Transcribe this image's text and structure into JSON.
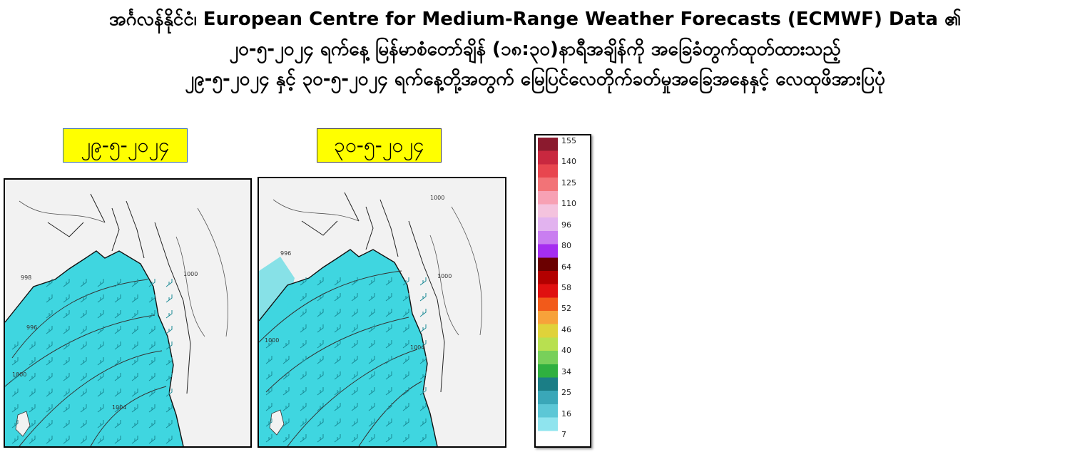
{
  "title": {
    "line1": "အင်္ဂလန်နိုင်ငံ၊ European Centre for Medium-Range Weather Forecasts  (ECMWF) Data ၏",
    "line2": "၂၀-၅-၂၀၂၄ ရက်နေ့ မြန်မာစံတော်ချိန် (၁၈:၃၀)နာရီအချိန်ကို  အခြေခံတွက်ထုတ်ထားသည့်",
    "line3": "၂၉-၅-၂၀၂၄ နှင့် ၃၀-၅-၂၀၂၄ ရက်နေ့တို့အတွက် မြေပြင်လေတိုက်ခတ်မှုအခြေအနေနှင့် လေထုဖိအားပြပုံ"
  },
  "maps": [
    {
      "date_label": "၂၉-၅-၂၀၂၄",
      "contour_labels": [
        "998",
        "1000",
        "996",
        "1000",
        "1004"
      ]
    },
    {
      "date_label": "၃၀-၅-၂၀၂၄",
      "contour_labels": [
        "1000",
        "996",
        "1000",
        "1004",
        "1000"
      ]
    }
  ],
  "colors": {
    "ocean": "#3fd6e0",
    "land": "#f2f2f2",
    "label_bg": "#ffff00",
    "contour": "#333333"
  },
  "legend": {
    "ticks": [
      "155",
      "140",
      "125",
      "110",
      "96",
      "80",
      "64",
      "58",
      "52",
      "46",
      "40",
      "34",
      "25",
      "16",
      "7"
    ],
    "bands": [
      "#8b1a2e",
      "#c9283f",
      "#e8464f",
      "#f27377",
      "#f7a1b4",
      "#f4c3de",
      "#e2b3ef",
      "#c97ef0",
      "#a52ef0",
      "#6b0000",
      "#b30000",
      "#e01010",
      "#f25a1a",
      "#f7a23a",
      "#e0d23a",
      "#b8e050",
      "#78d05a",
      "#2fb040",
      "#1b7e86",
      "#3aa7b8",
      "#5cc7d6",
      "#8fe4ee",
      "#ffffff"
    ]
  }
}
